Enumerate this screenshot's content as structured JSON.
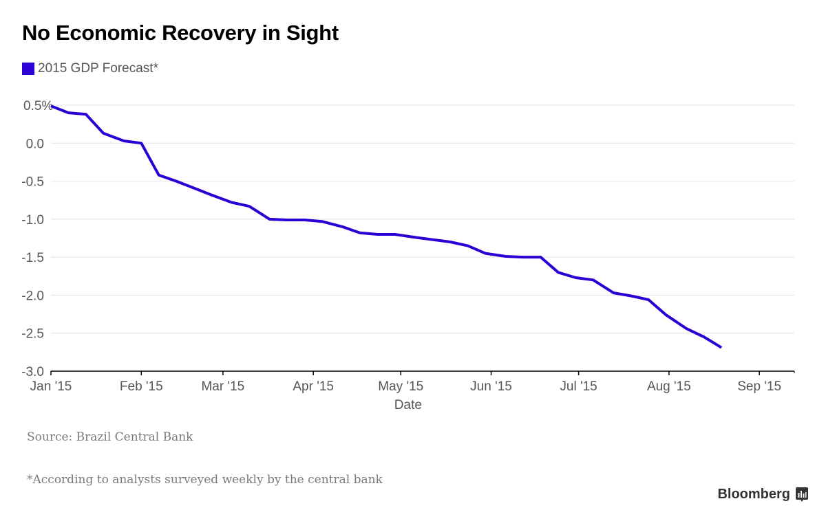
{
  "header": {
    "title": "No Economic Recovery in Sight"
  },
  "legend": {
    "label": "2015 GDP Forecast*",
    "color": "#2a00d5"
  },
  "footer": {
    "source": "Source: Brazil Central Bank",
    "footnote": "*According to analysts surveyed weekly by the central bank",
    "brand": "Bloomberg",
    "brand_icon": "bloomberg-chart-icon"
  },
  "chart_data": {
    "type": "line",
    "title": "No Economic Recovery in Sight",
    "xlabel": "Date",
    "ylabel": "",
    "ylim": [
      -3.0,
      0.5
    ],
    "y_ticks": [
      0.5,
      0.0,
      -0.5,
      -1.0,
      -1.5,
      -2.0,
      -2.5,
      -3.0
    ],
    "y_tick_labels": [
      "0.5%",
      "0.0",
      "-0.5",
      "-1.0",
      "-1.5",
      "-2.0",
      "-2.5",
      "-3.0"
    ],
    "x_ticks": [
      {
        "label": "Jan '15",
        "day": 0
      },
      {
        "label": "Feb '15",
        "day": 31
      },
      {
        "label": "Mar '15",
        "day": 59
      },
      {
        "label": "Apr '15",
        "day": 90
      },
      {
        "label": "May '15",
        "day": 120
      },
      {
        "label": "Jun '15",
        "day": 151
      },
      {
        "label": "Jul '15",
        "day": 181
      },
      {
        "label": "Aug '15",
        "day": 212
      },
      {
        "label": "Sep '15",
        "day": 243
      }
    ],
    "xlim_days": [
      0,
      255
    ],
    "grid": true,
    "legend_position": "top-left",
    "series": [
      {
        "name": "2015 GDP Forecast*",
        "color": "#2a00d5",
        "x_days": [
          0,
          6,
          12,
          18,
          25,
          31,
          37,
          43,
          49,
          55,
          62,
          68,
          75,
          81,
          87,
          93,
          100,
          106,
          112,
          118,
          125,
          131,
          137,
          143,
          149,
          156,
          162,
          168,
          174,
          180,
          186,
          193,
          199,
          205,
          211,
          218,
          224,
          230
        ],
        "values": [
          0.49,
          0.4,
          0.38,
          0.13,
          0.03,
          0.0,
          -0.42,
          -0.5,
          -0.59,
          -0.68,
          -0.78,
          -0.83,
          -1.0,
          -1.01,
          -1.01,
          -1.03,
          -1.1,
          -1.18,
          -1.2,
          -1.2,
          -1.24,
          -1.27,
          -1.3,
          -1.35,
          -1.45,
          -1.49,
          -1.5,
          -1.5,
          -1.7,
          -1.77,
          -1.8,
          -1.97,
          -2.01,
          -2.06,
          -2.26,
          -2.44,
          -2.55,
          -2.69
        ]
      }
    ]
  }
}
